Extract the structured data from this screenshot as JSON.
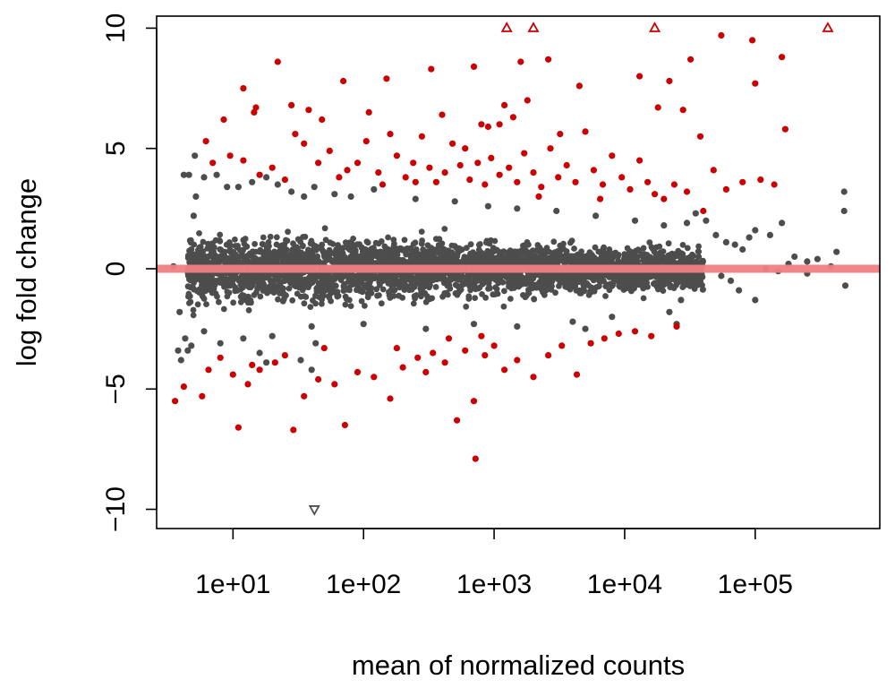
{
  "chart_data": {
    "type": "scatter",
    "title": "",
    "xlabel": "mean of normalized counts",
    "ylabel": "log fold change",
    "x_scale": "log10",
    "xlim": [
      2.6,
      900000
    ],
    "ylim": [
      -10.8,
      10.5
    ],
    "xticks": [
      {
        "value": 10,
        "label": "1e+01"
      },
      {
        "value": 100,
        "label": "1e+02"
      },
      {
        "value": 1000,
        "label": "1e+03"
      },
      {
        "value": 10000,
        "label": "1e+04"
      },
      {
        "value": 100000,
        "label": "1e+05"
      }
    ],
    "yticks": [
      {
        "value": -10,
        "label": "−10"
      },
      {
        "value": -5,
        "label": "−5"
      },
      {
        "value": 0,
        "label": "0"
      },
      {
        "value": 5,
        "label": "5"
      },
      {
        "value": 10,
        "label": "10"
      }
    ],
    "grid": false,
    "legend": "none",
    "reference_line": {
      "y": 0,
      "color": "#f08080"
    },
    "series": [
      {
        "color": "#4d4d4d",
        "marker": "circle",
        "points": [
          [
            4.2,
            3.9
          ],
          [
            4.6,
            3.9
          ],
          [
            5.1,
            4.7
          ],
          [
            3.5,
            0.1
          ],
          [
            3.9,
            -1.8
          ],
          [
            3.8,
            -3.4
          ],
          [
            4.3,
            -2.9
          ],
          [
            4.0,
            -3.8
          ],
          [
            4.5,
            -3.4
          ],
          [
            4.8,
            -3.2
          ],
          [
            5.0,
            2.2
          ],
          [
            5.2,
            3.0
          ],
          [
            6.0,
            3.8
          ],
          [
            7.5,
            3.9
          ],
          [
            9.0,
            3.4
          ],
          [
            11.0,
            3.4
          ],
          [
            14.0,
            3.6
          ],
          [
            18.0,
            3.8
          ],
          [
            22.0,
            3.5
          ],
          [
            28.0,
            3.2
          ],
          [
            35.0,
            3.0
          ],
          [
            42.0,
            3.4
          ],
          [
            60.0,
            3.1
          ],
          [
            80.0,
            3.0
          ],
          [
            120.0,
            3.3
          ],
          [
            250.0,
            2.9
          ],
          [
            500.0,
            2.8
          ],
          [
            900.0,
            2.6
          ],
          [
            1500.0,
            2.5
          ],
          [
            3000.0,
            2.4
          ],
          [
            6000.0,
            2.2
          ],
          [
            12000.0,
            2.0
          ],
          [
            20000.0,
            1.8
          ],
          [
            30000.0,
            1.9
          ],
          [
            35000.0,
            2.3
          ],
          [
            42000.0,
            2.0
          ],
          [
            50000.0,
            1.4
          ],
          [
            60000.0,
            1.1
          ],
          [
            70000.0,
            1.0
          ],
          [
            80000.0,
            0.8
          ],
          [
            90000.0,
            1.3
          ],
          [
            100000.0,
            1.6
          ],
          [
            130000.0,
            1.4
          ],
          [
            160000.0,
            1.9
          ],
          [
            200000.0,
            0.5
          ],
          [
            250000.0,
            0.3
          ],
          [
            300000.0,
            0.4
          ],
          [
            380000.0,
            0.1
          ],
          [
            420000.0,
            0.7
          ],
          [
            480000.0,
            3.2
          ],
          [
            480000.0,
            2.4
          ],
          [
            490000.0,
            -0.7
          ],
          [
            250000.0,
            -0.2
          ],
          [
            100000.0,
            -1.3
          ],
          [
            75000.0,
            -0.9
          ],
          [
            65000.0,
            -0.5
          ],
          [
            55000.0,
            -0.3
          ],
          [
            120000.0,
            0.0
          ],
          [
            150000.0,
            -0.1
          ],
          [
            180000.0,
            0.2
          ],
          [
            22000.0,
            -1.8
          ],
          [
            27000.0,
            -1.3
          ],
          [
            8000.0,
            -2.0
          ],
          [
            4000.0,
            -2.2
          ],
          [
            1500.0,
            -2.4
          ],
          [
            700.0,
            -2.3
          ],
          [
            300.0,
            -2.5
          ],
          [
            100.0,
            -2.3
          ],
          [
            40.0,
            -2.4
          ],
          [
            20.0,
            -2.8
          ],
          [
            12.0,
            -2.9
          ],
          [
            8.0,
            -3.1
          ],
          [
            6.0,
            -2.6
          ],
          [
            43.0,
            -3.1
          ],
          [
            40.0,
            -4.2
          ],
          [
            18.0,
            -3.9
          ],
          [
            16.0,
            -3.5
          ],
          [
            33.0,
            -3.8
          ],
          [
            25000.0,
            -2.3
          ],
          [
            5000.0,
            -2.5
          ]
        ]
      },
      {
        "color": "#cc0000",
        "marker": "circle",
        "points": [
          [
            6.2,
            5.3
          ],
          [
            8.5,
            6.2
          ],
          [
            12.0,
            7.5
          ],
          [
            14.5,
            6.5
          ],
          [
            22.0,
            8.6
          ],
          [
            28.0,
            6.8
          ],
          [
            38.0,
            6.6
          ],
          [
            70.0,
            7.8
          ],
          [
            150.0,
            7.9
          ],
          [
            330.0,
            8.3
          ],
          [
            700.0,
            8.4
          ],
          [
            1600.0,
            8.6
          ],
          [
            2600.0,
            8.7
          ],
          [
            13000.0,
            8.0
          ],
          [
            32000.0,
            8.7
          ],
          [
            55000.0,
            9.7
          ],
          [
            95000.0,
            9.5
          ],
          [
            160000.0,
            8.8
          ],
          [
            100000.0,
            7.7
          ],
          [
            22000.0,
            7.8
          ],
          [
            18000.0,
            6.7
          ],
          [
            28000.0,
            6.6
          ],
          [
            4500.0,
            7.6
          ],
          [
            1800.0,
            7.0
          ],
          [
            1200.0,
            6.8
          ],
          [
            800.0,
            6.0
          ],
          [
            400.0,
            6.4
          ],
          [
            110.0,
            6.5
          ],
          [
            48.0,
            6.2
          ],
          [
            15.0,
            6.7
          ],
          [
            7.0,
            4.4
          ],
          [
            9.5,
            4.7
          ],
          [
            12.0,
            4.5
          ],
          [
            16.0,
            3.9
          ],
          [
            20.0,
            4.2
          ],
          [
            25.0,
            3.7
          ],
          [
            30.0,
            5.6
          ],
          [
            35.0,
            5.2
          ],
          [
            45.0,
            4.4
          ],
          [
            55.0,
            4.9
          ],
          [
            65.0,
            3.8
          ],
          [
            75.0,
            4.1
          ],
          [
            90.0,
            4.4
          ],
          [
            105.0,
            5.3
          ],
          [
            130.0,
            4.0
          ],
          [
            160.0,
            5.6
          ],
          [
            180.0,
            4.7
          ],
          [
            210.0,
            3.8
          ],
          [
            240.0,
            4.4
          ],
          [
            280.0,
            5.5
          ],
          [
            320.0,
            4.2
          ],
          [
            360.0,
            3.6
          ],
          [
            420.0,
            4.0
          ],
          [
            480.0,
            5.2
          ],
          [
            550.0,
            4.3
          ],
          [
            650.0,
            3.7
          ],
          [
            750.0,
            4.4
          ],
          [
            850.0,
            3.5
          ],
          [
            950.0,
            4.6
          ],
          [
            1100.0,
            3.9
          ],
          [
            1300.0,
            4.2
          ],
          [
            1500.0,
            3.6
          ],
          [
            1700.0,
            4.8
          ],
          [
            2000.0,
            4.0
          ],
          [
            2300.0,
            3.4
          ],
          [
            2700.0,
            5.0
          ],
          [
            3100.0,
            3.8
          ],
          [
            3600.0,
            4.3
          ],
          [
            4200.0,
            3.6
          ],
          [
            5000.0,
            5.7
          ],
          [
            5800.0,
            4.1
          ],
          [
            6800.0,
            3.5
          ],
          [
            8000.0,
            4.7
          ],
          [
            9500.0,
            3.8
          ],
          [
            11000.0,
            3.3
          ],
          [
            13000.0,
            4.5
          ],
          [
            15000.0,
            3.6
          ],
          [
            17000.0,
            3.1
          ],
          [
            20000.0,
            2.9
          ],
          [
            24000.0,
            3.5
          ],
          [
            30000.0,
            3.2
          ],
          [
            38000.0,
            5.5
          ],
          [
            48000.0,
            4.1
          ],
          [
            60000.0,
            3.3
          ],
          [
            80000.0,
            3.6
          ],
          [
            110000.0,
            3.7
          ],
          [
            140000.0,
            3.5
          ],
          [
            170000.0,
            5.8
          ],
          [
            5.8,
            -5.3
          ],
          [
            3.6,
            -5.5
          ],
          [
            4.2,
            -4.9
          ],
          [
            6.5,
            -4.2
          ],
          [
            8.0,
            -3.7
          ],
          [
            10.0,
            -4.4
          ],
          [
            11.0,
            -6.6
          ],
          [
            13.0,
            -4.8
          ],
          [
            16.0,
            -4.2
          ],
          [
            21.0,
            -3.9
          ],
          [
            29.0,
            -6.7
          ],
          [
            35.0,
            -5.3
          ],
          [
            45.0,
            -4.6
          ],
          [
            60.0,
            -4.8
          ],
          [
            72.0,
            -6.5
          ],
          [
            90.0,
            -4.3
          ],
          [
            120.0,
            -4.5
          ],
          [
            160.0,
            -5.4
          ],
          [
            200.0,
            -4.1
          ],
          [
            260.0,
            -3.7
          ],
          [
            340.0,
            -3.5
          ],
          [
            420.0,
            -3.9
          ],
          [
            520.0,
            -6.3
          ],
          [
            600.0,
            -3.4
          ],
          [
            700.0,
            -5.5
          ],
          [
            720.0,
            -7.9
          ],
          [
            850.0,
            -3.6
          ],
          [
            1000.0,
            -3.2
          ],
          [
            1200.0,
            -4.2
          ],
          [
            1500.0,
            -3.8
          ],
          [
            2000.0,
            -4.5
          ],
          [
            2600.0,
            -3.6
          ],
          [
            3300.0,
            -3.2
          ],
          [
            4300.0,
            -4.4
          ],
          [
            5500.0,
            -3.1
          ],
          [
            7000.0,
            -2.9
          ],
          [
            9000.0,
            -2.7
          ],
          [
            12000.0,
            -2.6
          ],
          [
            16000.0,
            -2.8
          ],
          [
            25000.0,
            -2.4
          ],
          [
            14.0,
            -4.0
          ],
          [
            50.0,
            -3.3
          ],
          [
            25.0,
            -3.6
          ],
          [
            300.0,
            -4.3
          ],
          [
            800.0,
            -2.8
          ],
          [
            180.0,
            -3.3
          ],
          [
            450.0,
            -2.9
          ],
          [
            1100.0,
            6.0
          ],
          [
            1400.0,
            6.3
          ],
          [
            3200.0,
            5.6
          ],
          [
            600.0,
            5.0
          ],
          [
            900.0,
            5.9
          ],
          [
            250.0,
            3.6
          ],
          [
            140.0,
            3.5
          ],
          [
            2200.0,
            3.0
          ],
          [
            6500.0,
            2.9
          ],
          [
            40000.0,
            2.4
          ]
        ]
      },
      {
        "color": "#cc0000",
        "marker": "triangle-up",
        "points": [
          [
            1250.0,
            10.0
          ],
          [
            2000.0,
            10.0
          ],
          [
            17000.0,
            10.0
          ],
          [
            360000.0,
            10.0
          ]
        ]
      },
      {
        "color": "#4d4d4d",
        "marker": "triangle-down",
        "points": [
          [
            42.0,
            -10.0
          ]
        ]
      }
    ],
    "background_cloud": {
      "color": "#4d4d4d",
      "x_range": [
        4.5,
        40000
      ],
      "y_center": 0,
      "typical_spread": 1.2
    }
  }
}
